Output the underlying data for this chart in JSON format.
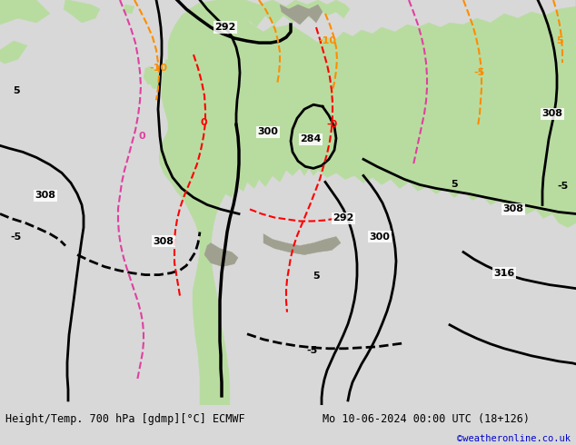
{
  "title_left": "Height/Temp. 700 hPa [gdmp][°C] ECMWF",
  "title_right": "Mo 10-06-2024 00:00 UTC (18+126)",
  "credit": "©weatheronline.co.uk",
  "sea_color": "#d8d8d8",
  "land_color": "#b8dca0",
  "mountain_color": "#a0a090",
  "bottom_bar_color": "#d8d8d8",
  "text_color": "#000000",
  "credit_color": "#0000cc",
  "figsize": [
    6.34,
    4.9
  ],
  "dpi": 100
}
